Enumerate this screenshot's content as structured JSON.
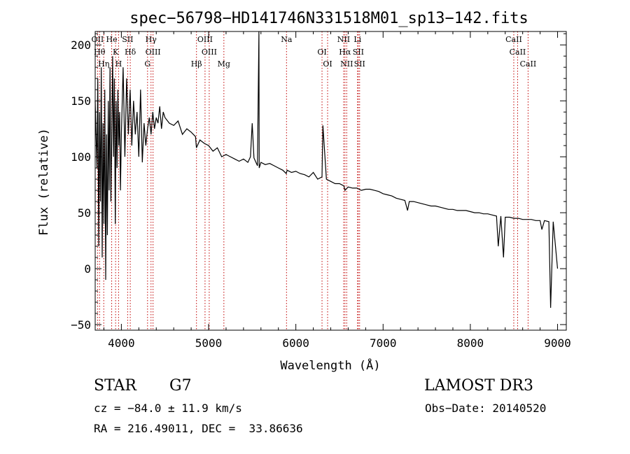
{
  "chart_data": {
    "type": "line",
    "title": "spec−56798−HD141746N331518M01_sp13−142.fits",
    "xlabel": "Wavelength (Å)",
    "ylabel": "Flux (relative)",
    "xlim": [
      3700,
      9100
    ],
    "ylim": [
      -55,
      212
    ],
    "xticks": [
      4000,
      5000,
      6000,
      7000,
      8000,
      9000
    ],
    "yticks": [
      -50,
      0,
      50,
      100,
      150,
      200
    ],
    "ytick_labels": [
      "−50",
      "0",
      "50",
      "100",
      "150",
      "200"
    ],
    "grid": false,
    "series": [
      {
        "name": "flux",
        "x": [
          3700,
          3720,
          3730,
          3740,
          3750,
          3760,
          3770,
          3780,
          3790,
          3800,
          3810,
          3820,
          3830,
          3840,
          3850,
          3860,
          3870,
          3880,
          3890,
          3900,
          3910,
          3920,
          3930,
          3940,
          3950,
          3960,
          3970,
          3980,
          3990,
          4000,
          4020,
          4040,
          4060,
          4080,
          4100,
          4120,
          4140,
          4160,
          4180,
          4200,
          4220,
          4240,
          4260,
          4280,
          4300,
          4320,
          4340,
          4360,
          4380,
          4400,
          4420,
          4440,
          4460,
          4480,
          4500,
          4550,
          4600,
          4650,
          4700,
          4750,
          4800,
          4850,
          4860,
          4900,
          4950,
          5000,
          5050,
          5100,
          5150,
          5200,
          5250,
          5300,
          5350,
          5400,
          5450,
          5480,
          5500,
          5520,
          5560,
          5577,
          5580,
          5600,
          5650,
          5700,
          5750,
          5800,
          5850,
          5890,
          5900,
          5950,
          6000,
          6050,
          6100,
          6150,
          6200,
          6250,
          6300,
          6310,
          6350,
          6400,
          6450,
          6500,
          6550,
          6563,
          6600,
          6650,
          6700,
          6750,
          6800,
          6850,
          6900,
          6950,
          7000,
          7050,
          7100,
          7150,
          7200,
          7250,
          7280,
          7300,
          7350,
          7400,
          7450,
          7500,
          7550,
          7600,
          7650,
          7700,
          7750,
          7800,
          7850,
          7900,
          7950,
          8000,
          8050,
          8100,
          8150,
          8200,
          8250,
          8300,
          8320,
          8350,
          8380,
          8400,
          8450,
          8500,
          8550,
          8600,
          8650,
          8700,
          8750,
          8800,
          8820,
          8850,
          8900,
          8920,
          8950,
          9000
        ],
        "y": [
          150,
          90,
          170,
          20,
          140,
          60,
          180,
          10,
          130,
          40,
          160,
          -10,
          120,
          30,
          150,
          70,
          180,
          60,
          120,
          190,
          100,
          170,
          40,
          150,
          90,
          160,
          110,
          140,
          70,
          120,
          180,
          100,
          170,
          120,
          160,
          110,
          150,
          120,
          140,
          100,
          160,
          95,
          130,
          110,
          125,
          135,
          120,
          140,
          125,
          135,
          130,
          145,
          125,
          140,
          135,
          130,
          128,
          132,
          120,
          125,
          122,
          118,
          108,
          115,
          112,
          110,
          105,
          108,
          100,
          102,
          100,
          98,
          96,
          98,
          95,
          100,
          130,
          99,
          92,
          212,
          90,
          95,
          93,
          94,
          92,
          90,
          88,
          85,
          88,
          86,
          87,
          85,
          84,
          82,
          86,
          80,
          82,
          128,
          80,
          78,
          76,
          76,
          74,
          70,
          73,
          72,
          72,
          70,
          71,
          71,
          70,
          69,
          67,
          66,
          65,
          63,
          62,
          61,
          52,
          60,
          60,
          59,
          58,
          57,
          56,
          56,
          55,
          54,
          53,
          53,
          52,
          52,
          52,
          51,
          50,
          50,
          49,
          49,
          48,
          47,
          20,
          47,
          10,
          46,
          46,
          45,
          45,
          44,
          44,
          44,
          43,
          43,
          35,
          43,
          42,
          -35,
          42,
          0
        ]
      }
    ],
    "lines": [
      {
        "x": 3727,
        "label": "OII"
      },
      {
        "x": 3750,
        "label": "Hθ"
      },
      {
        "x": 3798,
        "label": "Hη"
      },
      {
        "x": 3889,
        "label": "He"
      },
      {
        "x": 3934,
        "label": "K"
      },
      {
        "x": 3968,
        "label": "H"
      },
      {
        "x": 4072,
        "label": "SII"
      },
      {
        "x": 4102,
        "label": "Hδ"
      },
      {
        "x": 4300,
        "label": "G"
      },
      {
        "x": 4340,
        "label": "Hγ"
      },
      {
        "x": 4363,
        "label": "OIII"
      },
      {
        "x": 4861,
        "label": "Hβ"
      },
      {
        "x": 4959,
        "label": "OIII"
      },
      {
        "x": 5007,
        "label": "OIII"
      },
      {
        "x": 5175,
        "label": "Mg"
      },
      {
        "x": 5893,
        "label": "Na"
      },
      {
        "x": 6300,
        "label": "OI"
      },
      {
        "x": 6364,
        "label": "OI"
      },
      {
        "x": 6548,
        "label": "NII"
      },
      {
        "x": 6563,
        "label": "Hα"
      },
      {
        "x": 6583,
        "label": "NII"
      },
      {
        "x": 6707,
        "label": "Li"
      },
      {
        "x": 6716,
        "label": "SII"
      },
      {
        "x": 6731,
        "label": "SII"
      },
      {
        "x": 8498,
        "label": "CaII"
      },
      {
        "x": 8542,
        "label": "CaII"
      },
      {
        "x": 8662,
        "label": "CaII"
      }
    ]
  },
  "info": {
    "object_class": "STAR",
    "subclass": "G7",
    "survey": "LAMOST DR3",
    "redshift": "cz = −84.0 ± 11.9 km/s",
    "obs_date": "Obs−Date: 20140520",
    "coords": "RA = 216.49011, DEC =  33.86636"
  }
}
